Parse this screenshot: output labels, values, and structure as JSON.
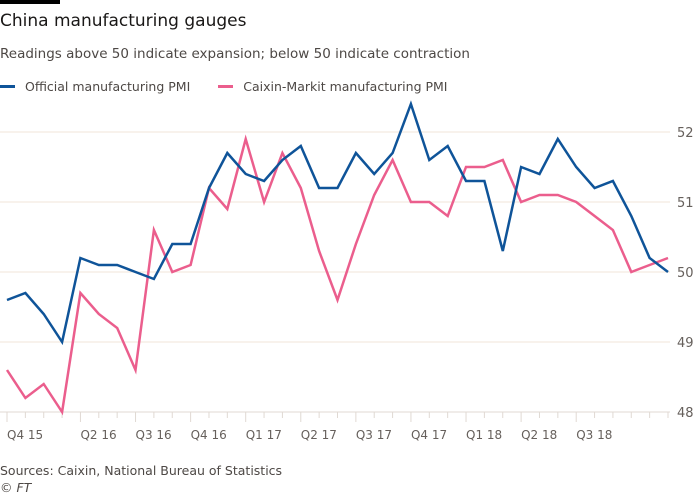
{
  "header": {
    "title": "China manufacturing gauges",
    "subtitle": "Readings above 50 indicate expansion; below 50 indicate contraction"
  },
  "footer": {
    "source": "Sources: Caixin, National Bureau of Statistics",
    "copyright": "© FT"
  },
  "chart_data": {
    "type": "line",
    "title": "China manufacturing gauges",
    "subtitle": "Readings above 50 indicate expansion; below 50 indicate contraction",
    "xlabel": "",
    "ylabel": "",
    "ylim": [
      48,
      52.5
    ],
    "yticks": [
      48,
      49,
      50,
      51,
      52
    ],
    "y_axis_side": "right",
    "grid": true,
    "legend_placement": "top-left",
    "x_tick_labels": [
      {
        "index": 0,
        "label": "Q4 15"
      },
      {
        "index": 4,
        "label": "Q2 16"
      },
      {
        "index": 7,
        "label": "Q3 16"
      },
      {
        "index": 10,
        "label": "Q4 16"
      },
      {
        "index": 13,
        "label": "Q1 17"
      },
      {
        "index": 16,
        "label": "Q2 17"
      },
      {
        "index": 19,
        "label": "Q3 17"
      },
      {
        "index": 22,
        "label": "Q4 17"
      },
      {
        "index": 25,
        "label": "Q1 18"
      },
      {
        "index": 28,
        "label": "Q2 18"
      },
      {
        "index": 31,
        "label": "Q3 18"
      }
    ],
    "n_points": 37,
    "series": [
      {
        "name": "Official manufacturing PMI",
        "color": "#0f5499",
        "values": [
          49.6,
          49.7,
          49.4,
          49.0,
          50.2,
          50.1,
          50.1,
          50.0,
          49.9,
          50.4,
          50.4,
          51.2,
          51.7,
          51.4,
          51.3,
          51.6,
          51.8,
          51.2,
          51.2,
          51.7,
          51.4,
          51.7,
          52.4,
          51.6,
          51.8,
          51.3,
          51.3,
          50.3,
          51.5,
          51.4,
          51.9,
          51.5,
          51.2,
          51.3,
          50.8,
          50.2,
          50.0
        ]
      },
      {
        "name": "Caixin-Markit manufacturing PMI",
        "color": "#eb5e8d",
        "values": [
          48.6,
          48.2,
          48.4,
          48.0,
          49.7,
          49.4,
          49.2,
          48.6,
          50.6,
          50.0,
          50.1,
          51.2,
          50.9,
          51.9,
          51.0,
          51.7,
          51.2,
          50.3,
          49.6,
          50.4,
          51.1,
          51.6,
          51.0,
          51.0,
          50.8,
          51.5,
          51.5,
          51.6,
          51.0,
          51.1,
          51.1,
          51.0,
          50.8,
          50.6,
          50.0,
          50.1,
          50.2
        ]
      }
    ]
  }
}
